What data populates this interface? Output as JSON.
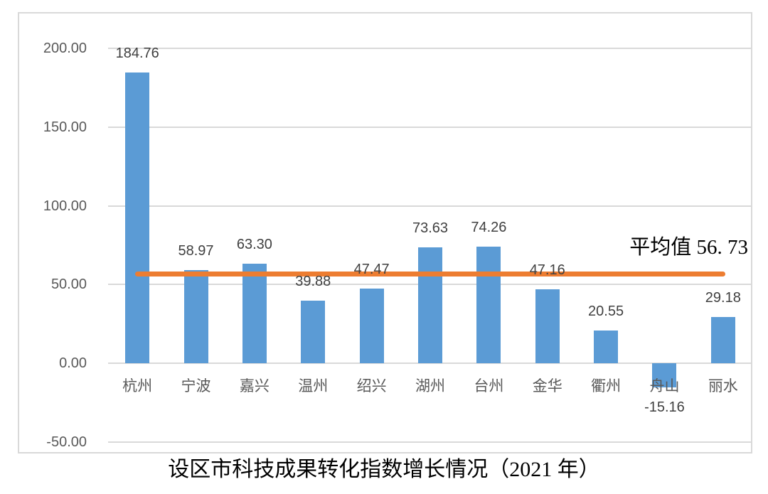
{
  "chart_data": {
    "type": "bar",
    "title": "设区市科技成果转化指数增长情况（2021 年）",
    "categories": [
      "杭州",
      "宁波",
      "嘉兴",
      "温州",
      "绍兴",
      "湖州",
      "台州",
      "金华",
      "衢州",
      "舟山",
      "丽水"
    ],
    "values": [
      184.76,
      58.97,
      63.3,
      39.88,
      47.47,
      73.63,
      74.26,
      47.16,
      20.55,
      -15.16,
      29.18
    ],
    "value_labels": [
      "184.76",
      "58.97",
      "63.30",
      "39.88",
      "47.47",
      "73.63",
      "74.26",
      "47.16",
      "20.55",
      "-15.16",
      "29.18"
    ],
    "average_value": 56.73,
    "average_label": "平均值 56. 73",
    "y_axis": {
      "tick_labels": [
        "200.00",
        "150.00",
        "100.00",
        "50.00",
        "0.00",
        "-50.00"
      ],
      "tick_values": [
        200,
        150,
        100,
        50,
        0,
        -50
      ],
      "range": [
        -50,
        200
      ]
    },
    "grid": true,
    "legend": "none",
    "colors": {
      "bar": "#5B9BD5",
      "average_line": "#ED7D31",
      "gridline": "#D9D9D9",
      "frame_border": "#D9D9D9",
      "axis_text": "#595959",
      "value_text": "#404040",
      "title_text": "#000000"
    }
  }
}
